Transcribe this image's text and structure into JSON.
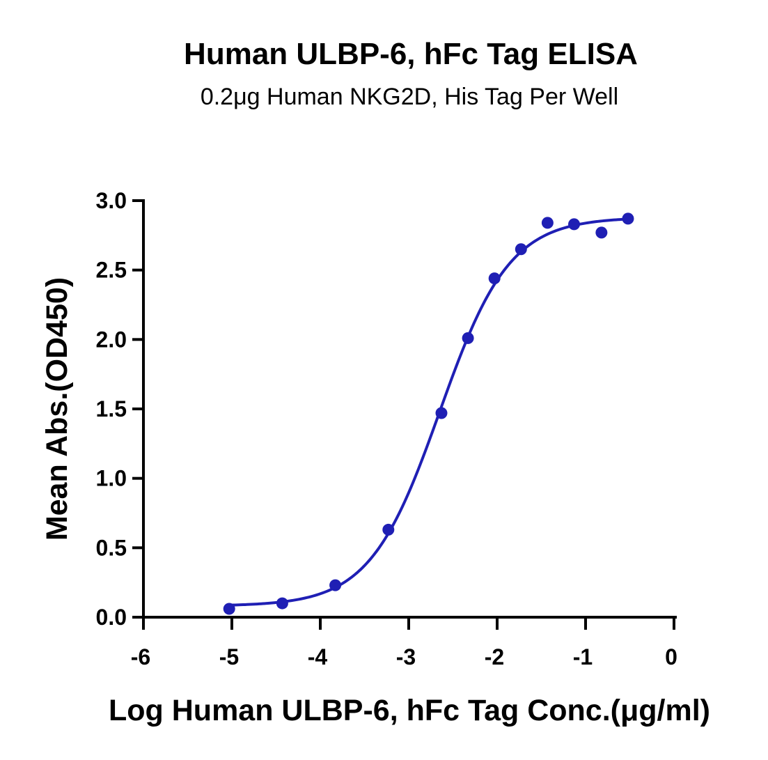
{
  "chart_data": {
    "type": "scatter",
    "title": "Human ULBP-6, hFc Tag ELISA",
    "subtitle": "0.2μg Human NKG2D, His Tag Per Well",
    "xlabel": "Log Human ULBP-6, hFc Tag Conc.(μg/ml)",
    "ylabel": "Mean Abs.(OD450)",
    "xlim": [
      -6,
      0
    ],
    "ylim": [
      0,
      3
    ],
    "x_ticks": [
      "-6",
      "-5",
      "-4",
      "-3",
      "-2",
      "-1",
      "0"
    ],
    "y_ticks": [
      "0.0",
      "0.5",
      "1.0",
      "1.5",
      "2.0",
      "2.5",
      "3.0"
    ],
    "grid": false,
    "series": [
      {
        "color": "#1f1fb4",
        "points": [
          {
            "x": -5.03,
            "y": 0.06
          },
          {
            "x": -4.43,
            "y": 0.1
          },
          {
            "x": -3.83,
            "y": 0.23
          },
          {
            "x": -3.23,
            "y": 0.63
          },
          {
            "x": -2.63,
            "y": 1.47
          },
          {
            "x": -2.33,
            "y": 2.01
          },
          {
            "x": -2.03,
            "y": 2.44
          },
          {
            "x": -1.73,
            "y": 2.65
          },
          {
            "x": -1.43,
            "y": 2.84
          },
          {
            "x": -1.13,
            "y": 2.83
          },
          {
            "x": -0.82,
            "y": 2.77
          },
          {
            "x": -0.52,
            "y": 2.87
          }
        ],
        "fit": {
          "model": "4PL",
          "bottom": 0.08,
          "top": 2.88,
          "log_ec50": -2.65,
          "hill_slope": 1.1,
          "x_range": [
            -5.03,
            -0.52
          ]
        }
      }
    ]
  }
}
